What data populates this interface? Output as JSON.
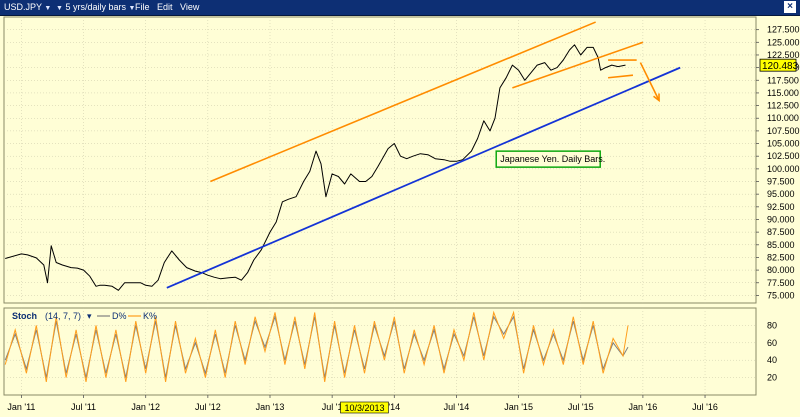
{
  "toolbar": {
    "symbol": "USD.JPY",
    "period": "5 yrs/daily bars",
    "menu_file": "File",
    "menu_edit": "Edit",
    "menu_view": "View",
    "close_glyph": "×"
  },
  "colors": {
    "background": "#fffed6",
    "price": "#000000",
    "upper_channel": "#ff8c00",
    "lower_trend": "#1433d6",
    "d_line": "#808080",
    "k_line": "#ff9e1c",
    "grid": "#c8c7a8",
    "annotation_border": "#0fa70f",
    "current_price_bg": "#ffff00"
  },
  "chart_data": [
    {
      "type": "line",
      "series": [
        {
          "values": [
            [
              2010.87,
              82.3
            ],
            [
              2011.0,
              83.2
            ],
            [
              2011.05,
              83.0
            ],
            [
              2011.12,
              82.4
            ],
            [
              2011.18,
              81.0
            ],
            [
              2011.21,
              77.5
            ],
            [
              2011.24,
              84.8
            ],
            [
              2011.28,
              81.5
            ],
            [
              2011.33,
              81.0
            ],
            [
              2011.4,
              80.5
            ],
            [
              2011.45,
              80.4
            ],
            [
              2011.5,
              80.0
            ],
            [
              2011.55,
              78.8
            ],
            [
              2011.6,
              76.8
            ],
            [
              2011.63,
              77.0
            ],
            [
              2011.67,
              77.0
            ],
            [
              2011.73,
              76.8
            ],
            [
              2011.78,
              76.0
            ],
            [
              2011.83,
              77.5
            ],
            [
              2011.88,
              77.5
            ],
            [
              2011.96,
              77.5
            ],
            [
              2012.0,
              77.0
            ],
            [
              2012.05,
              76.8
            ],
            [
              2012.1,
              78.0
            ],
            [
              2012.15,
              81.5
            ],
            [
              2012.21,
              83.8
            ],
            [
              2012.27,
              82.0
            ],
            [
              2012.33,
              80.5
            ],
            [
              2012.4,
              79.8
            ],
            [
              2012.45,
              79.5
            ],
            [
              2012.5,
              79.0
            ],
            [
              2012.55,
              78.6
            ],
            [
              2012.6,
              78.3
            ],
            [
              2012.67,
              78.5
            ],
            [
              2012.72,
              78.6
            ],
            [
              2012.77,
              78.0
            ],
            [
              2012.82,
              79.5
            ],
            [
              2012.87,
              82.0
            ],
            [
              2012.93,
              84.0
            ],
            [
              2013.0,
              87.5
            ],
            [
              2013.05,
              89.5
            ],
            [
              2013.1,
              93.5
            ],
            [
              2013.15,
              94.0
            ],
            [
              2013.21,
              94.5
            ],
            [
              2013.27,
              97.5
            ],
            [
              2013.32,
              99.5
            ],
            [
              2013.37,
              103.5
            ],
            [
              2013.41,
              101.0
            ],
            [
              2013.45,
              94.5
            ],
            [
              2013.5,
              99.0
            ],
            [
              2013.55,
              98.5
            ],
            [
              2013.6,
              97.0
            ],
            [
              2013.65,
              99.0
            ],
            [
              2013.72,
              97.5
            ],
            [
              2013.77,
              97.5
            ],
            [
              2013.82,
              98.5
            ],
            [
              2013.87,
              100.5
            ],
            [
              2013.95,
              104.0
            ],
            [
              2014.0,
              105.0
            ],
            [
              2014.05,
              102.5
            ],
            [
              2014.1,
              102.0
            ],
            [
              2014.15,
              102.5
            ],
            [
              2014.21,
              103.0
            ],
            [
              2014.27,
              102.8
            ],
            [
              2014.33,
              102.0
            ],
            [
              2014.4,
              101.8
            ],
            [
              2014.45,
              101.5
            ],
            [
              2014.5,
              101.5
            ],
            [
              2014.55,
              101.8
            ],
            [
              2014.62,
              103.5
            ],
            [
              2014.67,
              106.0
            ],
            [
              2014.72,
              109.5
            ],
            [
              2014.77,
              107.5
            ],
            [
              2014.81,
              110.0
            ],
            [
              2014.85,
              116.0
            ],
            [
              2014.9,
              118.0
            ],
            [
              2014.95,
              120.5
            ],
            [
              2015.0,
              119.5
            ],
            [
              2015.05,
              117.5
            ],
            [
              2015.1,
              119.0
            ],
            [
              2015.15,
              120.5
            ],
            [
              2015.21,
              121.0
            ],
            [
              2015.26,
              119.5
            ],
            [
              2015.31,
              120.0
            ],
            [
              2015.36,
              121.5
            ],
            [
              2015.41,
              123.5
            ],
            [
              2015.45,
              124.5
            ],
            [
              2015.5,
              122.5
            ],
            [
              2015.55,
              124.0
            ],
            [
              2015.6,
              124.0
            ],
            [
              2015.64,
              122.0
            ],
            [
              2015.66,
              119.5
            ],
            [
              2015.7,
              120.0
            ],
            [
              2015.75,
              120.5
            ],
            [
              2015.8,
              120.2
            ],
            [
              2015.86,
              120.5
            ]
          ]
        }
      ],
      "ylim": [
        73.5,
        130.0
      ],
      "yticks": [
        75.0,
        77.5,
        80.0,
        82.5,
        85.0,
        87.5,
        90.0,
        92.5,
        95.0,
        97.5,
        100.0,
        102.5,
        105.0,
        107.5,
        110.0,
        112.5,
        115.0,
        117.5,
        120.0,
        122.5,
        125.0,
        127.5
      ],
      "current_value": "120.483",
      "annotation": "Japanese Yen. Daily Bars.",
      "trendlines": [
        {
          "role": "upper-channel",
          "start": [
            2012.52,
            97.5
          ],
          "end": [
            2015.62,
            129.0
          ]
        },
        {
          "role": "upper-channel-lower-edge",
          "start": [
            2014.95,
            116.0
          ],
          "end": [
            2016.0,
            125.0
          ]
        },
        {
          "role": "lower-trend",
          "start": [
            2012.17,
            76.5
          ],
          "end": [
            2016.3,
            120.0
          ]
        },
        {
          "role": "flag-top",
          "start": [
            2015.72,
            121.5
          ],
          "end": [
            2015.95,
            121.5
          ]
        },
        {
          "role": "flag-bottom",
          "start": [
            2015.72,
            118.0
          ],
          "end": [
            2015.92,
            118.5
          ]
        },
        {
          "role": "projection-arrow",
          "start": [
            2015.98,
            121.0
          ],
          "end": [
            2016.13,
            113.5
          ]
        }
      ]
    },
    {
      "type": "line",
      "label": "Stoch",
      "params": "(14, 7, 7)",
      "legend": [
        "D%",
        "K%"
      ],
      "series": [
        {
          "name": "D%",
          "values": [
            [
              2010.87,
              40
            ],
            [
              2010.95,
              70
            ],
            [
              2011.04,
              30
            ],
            [
              2011.12,
              75
            ],
            [
              2011.2,
              20
            ],
            [
              2011.28,
              85
            ],
            [
              2011.36,
              25
            ],
            [
              2011.44,
              70
            ],
            [
              2011.52,
              20
            ],
            [
              2011.6,
              75
            ],
            [
              2011.68,
              25
            ],
            [
              2011.76,
              70
            ],
            [
              2011.84,
              20
            ],
            [
              2011.92,
              80
            ],
            [
              2012.0,
              30
            ],
            [
              2012.08,
              85
            ],
            [
              2012.16,
              20
            ],
            [
              2012.24,
              80
            ],
            [
              2012.32,
              30
            ],
            [
              2012.4,
              60
            ],
            [
              2012.48,
              25
            ],
            [
              2012.56,
              70
            ],
            [
              2012.64,
              25
            ],
            [
              2012.72,
              80
            ],
            [
              2012.8,
              40
            ],
            [
              2012.88,
              85
            ],
            [
              2012.96,
              55
            ],
            [
              2013.04,
              90
            ],
            [
              2013.12,
              40
            ],
            [
              2013.2,
              85
            ],
            [
              2013.28,
              35
            ],
            [
              2013.36,
              90
            ],
            [
              2013.44,
              20
            ],
            [
              2013.52,
              80
            ],
            [
              2013.6,
              25
            ],
            [
              2013.68,
              75
            ],
            [
              2013.76,
              30
            ],
            [
              2013.84,
              80
            ],
            [
              2013.92,
              45
            ],
            [
              2014.0,
              85
            ],
            [
              2014.08,
              30
            ],
            [
              2014.16,
              70
            ],
            [
              2014.24,
              40
            ],
            [
              2014.32,
              75
            ],
            [
              2014.4,
              30
            ],
            [
              2014.48,
              70
            ],
            [
              2014.56,
              45
            ],
            [
              2014.64,
              90
            ],
            [
              2014.72,
              45
            ],
            [
              2014.8,
              90
            ],
            [
              2014.88,
              70
            ],
            [
              2014.96,
              90
            ],
            [
              2015.04,
              30
            ],
            [
              2015.12,
              75
            ],
            [
              2015.2,
              40
            ],
            [
              2015.28,
              70
            ],
            [
              2015.36,
              40
            ],
            [
              2015.44,
              85
            ],
            [
              2015.52,
              40
            ],
            [
              2015.6,
              80
            ],
            [
              2015.68,
              30
            ],
            [
              2015.76,
              60
            ],
            [
              2015.84,
              45
            ],
            [
              2015.88,
              55
            ]
          ]
        },
        {
          "name": "K%",
          "values": [
            [
              2010.87,
              35
            ],
            [
              2010.95,
              75
            ],
            [
              2011.04,
              25
            ],
            [
              2011.12,
              80
            ],
            [
              2011.2,
              15
            ],
            [
              2011.28,
              90
            ],
            [
              2011.36,
              20
            ],
            [
              2011.44,
              75
            ],
            [
              2011.52,
              15
            ],
            [
              2011.6,
              80
            ],
            [
              2011.68,
              20
            ],
            [
              2011.76,
              75
            ],
            [
              2011.84,
              15
            ],
            [
              2011.92,
              85
            ],
            [
              2012.0,
              25
            ],
            [
              2012.08,
              90
            ],
            [
              2012.16,
              15
            ],
            [
              2012.24,
              85
            ],
            [
              2012.32,
              25
            ],
            [
              2012.4,
              65
            ],
            [
              2012.48,
              20
            ],
            [
              2012.56,
              75
            ],
            [
              2012.64,
              20
            ],
            [
              2012.72,
              85
            ],
            [
              2012.8,
              35
            ],
            [
              2012.88,
              90
            ],
            [
              2012.96,
              50
            ],
            [
              2013.04,
              95
            ],
            [
              2013.12,
              35
            ],
            [
              2013.2,
              90
            ],
            [
              2013.28,
              30
            ],
            [
              2013.36,
              95
            ],
            [
              2013.44,
              15
            ],
            [
              2013.52,
              85
            ],
            [
              2013.6,
              20
            ],
            [
              2013.68,
              80
            ],
            [
              2013.76,
              25
            ],
            [
              2013.84,
              85
            ],
            [
              2013.92,
              40
            ],
            [
              2014.0,
              90
            ],
            [
              2014.08,
              25
            ],
            [
              2014.16,
              75
            ],
            [
              2014.24,
              35
            ],
            [
              2014.32,
              80
            ],
            [
              2014.4,
              25
            ],
            [
              2014.48,
              75
            ],
            [
              2014.56,
              40
            ],
            [
              2014.64,
              95
            ],
            [
              2014.72,
              40
            ],
            [
              2014.8,
              95
            ],
            [
              2014.88,
              65
            ],
            [
              2014.96,
              95
            ],
            [
              2015.04,
              25
            ],
            [
              2015.12,
              80
            ],
            [
              2015.2,
              35
            ],
            [
              2015.28,
              75
            ],
            [
              2015.36,
              35
            ],
            [
              2015.44,
              90
            ],
            [
              2015.52,
              35
            ],
            [
              2015.6,
              85
            ],
            [
              2015.68,
              25
            ],
            [
              2015.76,
              65
            ],
            [
              2015.84,
              45
            ],
            [
              2015.88,
              80
            ]
          ]
        }
      ],
      "ylim": [
        0,
        100
      ],
      "yticks": [
        20,
        40,
        60,
        80
      ]
    }
  ],
  "x_axis": {
    "xlim": [
      2010.86,
      2016.91
    ],
    "ticks": [
      {
        "x": 2011.0,
        "label": "Jan '11"
      },
      {
        "x": 2011.5,
        "label": "Jul '11"
      },
      {
        "x": 2012.0,
        "label": "Jan '12"
      },
      {
        "x": 2012.5,
        "label": "Jul '12"
      },
      {
        "x": 2013.0,
        "label": "Jan '13"
      },
      {
        "x": 2013.5,
        "label": "Jul '1"
      },
      {
        "x": 2014.0,
        "label": "'14"
      },
      {
        "x": 2014.5,
        "label": "Jul '14"
      },
      {
        "x": 2015.0,
        "label": "Jan '15"
      },
      {
        "x": 2015.5,
        "label": "Jul '15"
      },
      {
        "x": 2016.0,
        "label": "Jan '16"
      },
      {
        "x": 2016.5,
        "label": "Jul '16"
      }
    ],
    "cursor_x": 2013.76,
    "cursor_label": "10/3/2013"
  }
}
